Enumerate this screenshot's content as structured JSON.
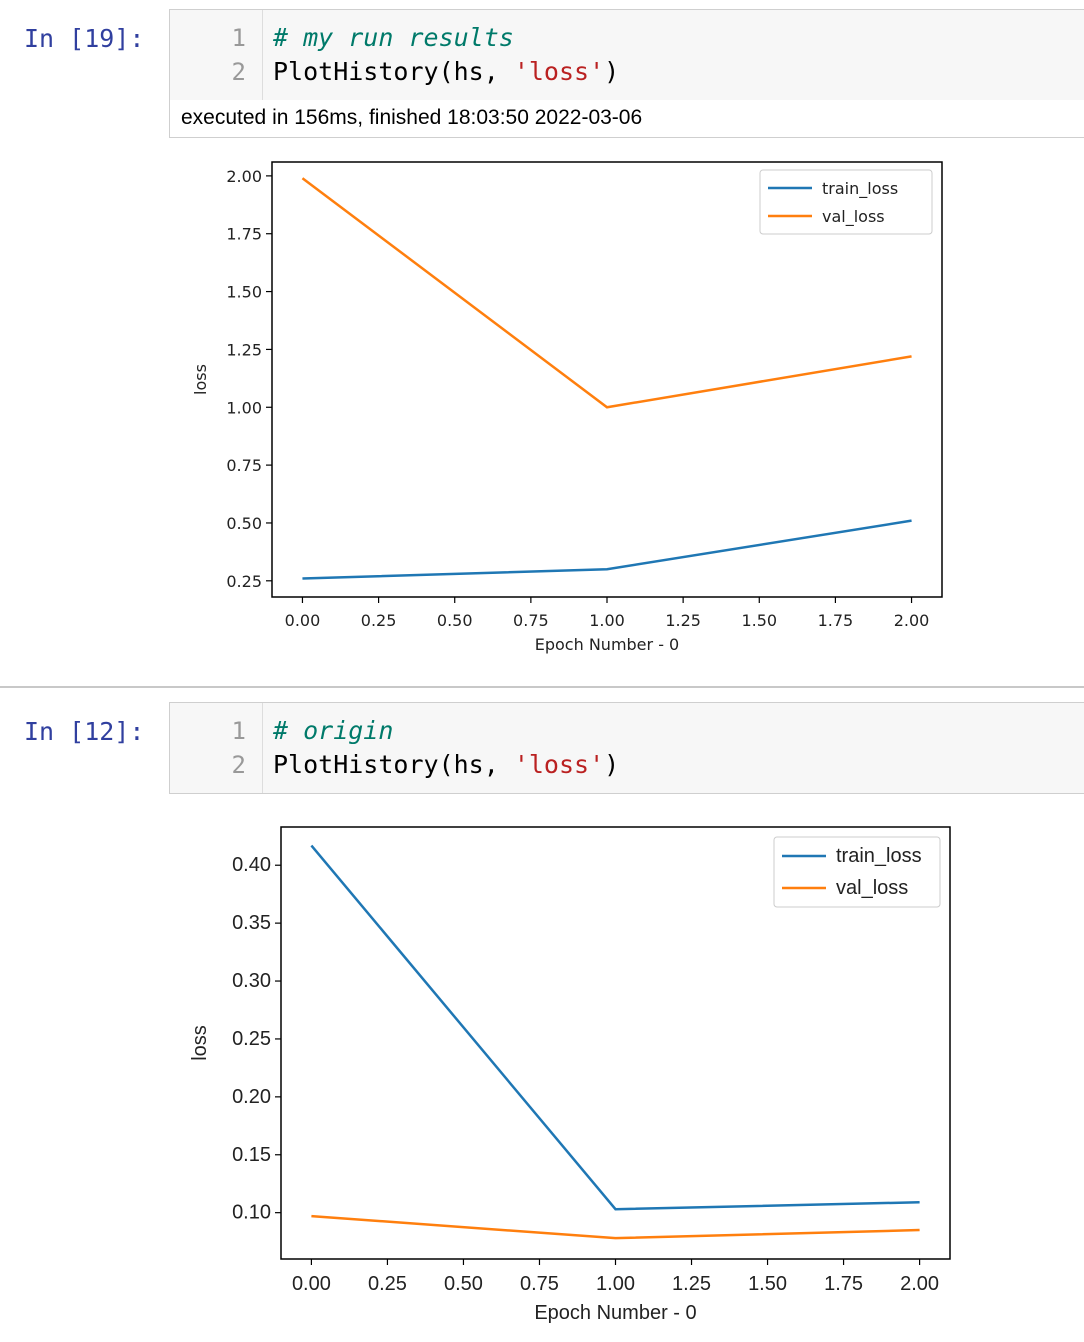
{
  "cells": [
    {
      "prompt": "In [19]:",
      "lines": [
        {
          "num": "1",
          "comment": "# my run results"
        },
        {
          "num": "2",
          "code": "PlotHistory(hs, ",
          "string": "'loss'",
          "close": ")"
        }
      ],
      "exec_info": "executed in 156ms, finished 18:03:50 2022-03-06"
    },
    {
      "prompt": "In [12]:",
      "lines": [
        {
          "num": "1",
          "comment": "# origin"
        },
        {
          "num": "2",
          "code": "PlotHistory(hs, ",
          "string": "'loss'",
          "close": ")"
        }
      ]
    }
  ],
  "colors": {
    "train": "#1f77b4",
    "val": "#ff7f0e",
    "prompt": "#303f9f",
    "comment": "#007a6a",
    "string": "#ba2121"
  },
  "chart_data": [
    {
      "type": "line",
      "xlabel": "Epoch Number - 0",
      "ylabel": "loss",
      "x": [
        0,
        1,
        2
      ],
      "xlim": [
        -0.1,
        2.1
      ],
      "ylim": [
        0.18,
        2.06
      ],
      "xticks": [
        "0.00",
        "0.25",
        "0.50",
        "0.75",
        "1.00",
        "1.25",
        "1.50",
        "1.75",
        "2.00"
      ],
      "xtick_values": [
        0,
        0.25,
        0.5,
        0.75,
        1,
        1.25,
        1.5,
        1.75,
        2
      ],
      "yticks": [
        "0.25",
        "0.50",
        "0.75",
        "1.00",
        "1.25",
        "1.50",
        "1.75",
        "2.00"
      ],
      "ytick_values": [
        0.25,
        0.5,
        0.75,
        1.0,
        1.25,
        1.5,
        1.75,
        2.0
      ],
      "legend_position": "top-right",
      "series": [
        {
          "name": "train_loss",
          "values": [
            0.26,
            0.3,
            0.51
          ]
        },
        {
          "name": "val_loss",
          "values": [
            1.99,
            1.0,
            1.22
          ]
        }
      ]
    },
    {
      "type": "line",
      "xlabel": "Epoch Number - 0",
      "ylabel": "loss",
      "x": [
        0,
        1,
        2
      ],
      "xlim": [
        -0.1,
        2.1
      ],
      "ylim": [
        0.06,
        0.433
      ],
      "xticks": [
        "0.00",
        "0.25",
        "0.50",
        "0.75",
        "1.00",
        "1.25",
        "1.50",
        "1.75",
        "2.00"
      ],
      "xtick_values": [
        0,
        0.25,
        0.5,
        0.75,
        1,
        1.25,
        1.5,
        1.75,
        2
      ],
      "yticks": [
        "0.10",
        "0.15",
        "0.20",
        "0.25",
        "0.30",
        "0.35",
        "0.40"
      ],
      "ytick_values": [
        0.1,
        0.15,
        0.2,
        0.25,
        0.3,
        0.35,
        0.4
      ],
      "legend_position": "top-right",
      "series": [
        {
          "name": "train_loss",
          "values": [
            0.417,
            0.103,
            0.109
          ]
        },
        {
          "name": "val_loss",
          "values": [
            0.097,
            0.078,
            0.085
          ]
        }
      ]
    }
  ]
}
